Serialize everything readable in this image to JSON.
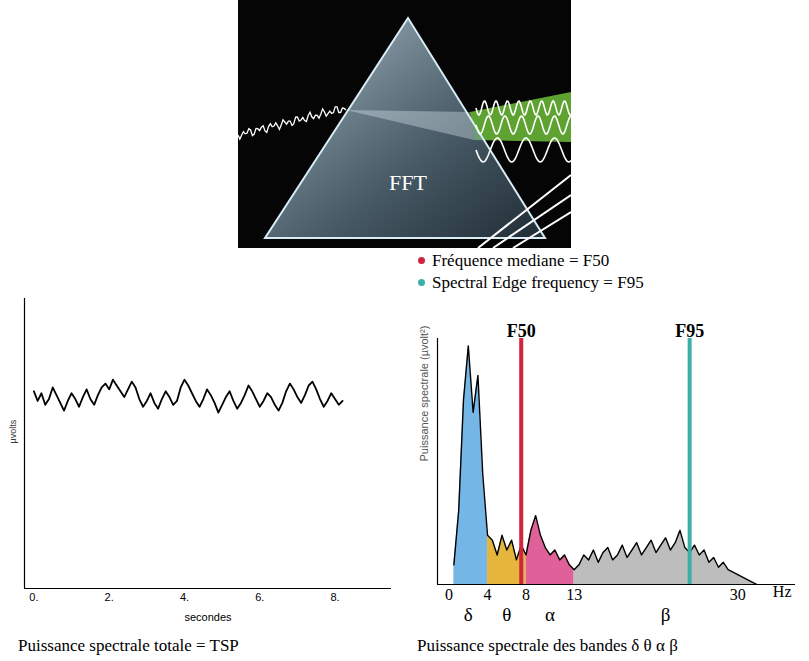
{
  "prism": {
    "label": "FFT"
  },
  "chart_data": [
    {
      "type": "line",
      "xlabel": "secondes",
      "ylabel": "µvolts",
      "caption": "Puissance spectrale totale = TSP",
      "color": "#000000",
      "x": [
        0,
        0.1,
        0.2,
        0.3,
        0.4,
        0.5,
        0.6,
        0.7,
        0.8,
        0.9,
        1,
        1.1,
        1.2,
        1.3,
        1.4,
        1.5,
        1.6,
        1.7,
        1.8,
        1.9,
        2,
        2.1,
        2.2,
        2.3,
        2.4,
        2.5,
        2.6,
        2.7,
        2.8,
        2.9,
        3,
        3.1,
        3.2,
        3.3,
        3.4,
        3.5,
        3.6,
        3.7,
        3.8,
        3.9,
        4,
        4.1,
        4.2,
        4.3,
        4.4,
        4.5,
        4.6,
        4.7,
        4.8,
        4.9,
        5,
        5.1,
        5.2,
        5.3,
        5.4,
        5.5,
        5.6,
        5.7,
        5.8,
        5.9,
        6,
        6.1,
        6.2,
        6.3,
        6.4,
        6.5,
        6.6,
        6.7,
        6.8,
        6.9,
        7,
        7.1,
        7.2,
        7.3,
        7.4,
        7.5,
        7.6,
        7.7,
        7.8,
        7.9,
        8,
        8.1,
        8.2
      ],
      "values": [
        2,
        -3,
        1,
        -5,
        -2,
        4,
        0,
        -4,
        -8,
        -3,
        1,
        -2,
        -6,
        -1,
        3,
        -2,
        -5,
        0,
        4,
        6,
        3,
        8,
        5,
        2,
        -1,
        3,
        7,
        4,
        -2,
        -6,
        -3,
        1,
        -4,
        -7,
        -2,
        2,
        -1,
        -5,
        -3,
        4,
        8,
        5,
        1,
        -3,
        -6,
        -2,
        3,
        0,
        -4,
        -9,
        -5,
        -1,
        2,
        -3,
        -7,
        -4,
        0,
        5,
        2,
        -2,
        -6,
        -3,
        1,
        -1,
        -5,
        -8,
        -4,
        2,
        6,
        3,
        -1,
        -4,
        0,
        5,
        7,
        3,
        -2,
        -6,
        -3,
        1,
        -2,
        -5,
        -3
      ],
      "xlim": [
        -0.25,
        9.5
      ],
      "ylim": [
        -100,
        50
      ],
      "xticks": [
        {
          "value": 0,
          "label": "0."
        },
        {
          "value": 2,
          "label": "2."
        },
        {
          "value": 4,
          "label": "4."
        },
        {
          "value": 6,
          "label": "6."
        },
        {
          "value": 8,
          "label": "8."
        }
      ],
      "tick_labels": "x"
    },
    {
      "type": "area",
      "xlabel": "Hz",
      "ylabel": "Puissance spectrale (µvolt²)",
      "caption": "Puissance spectrale des bandes δ θ α β",
      "color": "#000000",
      "x": [
        0.5,
        1,
        1.5,
        2,
        2.5,
        3,
        3.5,
        4,
        4.5,
        5,
        5.5,
        6,
        6.5,
        7,
        7.5,
        8,
        8.5,
        9,
        9.5,
        10,
        10.5,
        11,
        11.5,
        12,
        12.5,
        13,
        13.5,
        14,
        14.5,
        15,
        15.5,
        16,
        16.5,
        17,
        17.5,
        18,
        18.5,
        19,
        19.5,
        20,
        20.5,
        21,
        21.5,
        22,
        22.5,
        23,
        23.5,
        24,
        24.5,
        25,
        25.5,
        26,
        26.5,
        27,
        27.5,
        28,
        28.5,
        29,
        29.5,
        30,
        30.5,
        31,
        31.5,
        32
      ],
      "values": [
        8,
        30,
        75,
        97,
        70,
        85,
        45,
        20,
        18,
        12,
        20,
        14,
        18,
        10,
        16,
        12,
        22,
        28,
        20,
        15,
        12,
        14,
        10,
        12,
        8,
        6,
        8,
        12,
        10,
        14,
        9,
        13,
        15,
        10,
        12,
        16,
        11,
        14,
        17,
        12,
        15,
        18,
        13,
        16,
        19,
        14,
        17,
        22,
        15,
        13,
        16,
        12,
        14,
        9,
        11,
        7,
        9,
        6,
        5,
        4,
        3,
        2,
        1,
        0
      ],
      "bands": [
        {
          "name": "δ",
          "from": 0,
          "to": 4,
          "color": "#74b6e6"
        },
        {
          "name": "θ",
          "from": 4,
          "to": 8,
          "color": "#e6b53c"
        },
        {
          "name": "α",
          "from": 8,
          "to": 13,
          "color": "#e0609a"
        },
        {
          "name": "β",
          "from": 13,
          "to": 32,
          "color": "#bdbdbd"
        }
      ],
      "markers": [
        {
          "name": "F50",
          "label": "Fréquence mediane = F50",
          "value": 7.5,
          "color": "#d1253f"
        },
        {
          "name": "F95",
          "label": "Spectral Edge frequency = F95",
          "value": 25,
          "color": "#3bb0a8"
        }
      ],
      "legend": "top",
      "xlim": [
        -1.2,
        36
      ],
      "ylim": [
        0,
        100
      ],
      "xticks": [
        0,
        4,
        8,
        13,
        30
      ],
      "tick_labels": "x"
    }
  ]
}
